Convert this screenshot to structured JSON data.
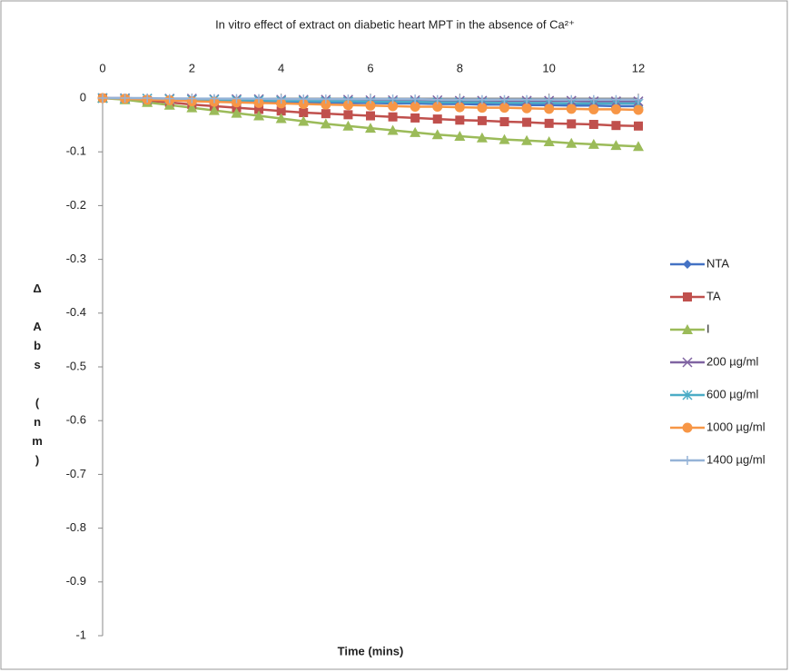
{
  "chart_data": {
    "type": "line",
    "title": "In vitro effect of extract on diabetic heart MPT in the absence of Ca²⁺",
    "x_label": "Time (mins)",
    "y_label": "Δ Abs (nm)",
    "x": [
      0,
      0.5,
      1,
      1.5,
      2,
      2.5,
      3,
      3.5,
      4,
      4.5,
      5,
      5.5,
      6,
      6.5,
      7,
      7.5,
      8,
      8.5,
      9,
      9.5,
      10,
      10.5,
      11,
      11.5,
      12
    ],
    "xlim": [
      0,
      12
    ],
    "xticks": [
      0,
      2,
      4,
      6,
      8,
      10,
      12
    ],
    "ylim": [
      -1,
      0
    ],
    "yticks": [
      0,
      -0.1,
      -0.2,
      -0.3,
      -0.4,
      -0.5,
      -0.6,
      -0.7,
      -0.8,
      -0.9,
      -1
    ],
    "grid": false,
    "legend": "right",
    "series": [
      {
        "name": "NTA",
        "color": "#4472c4",
        "marker": "diamond",
        "values": [
          0,
          -0.001,
          -0.002,
          -0.003,
          -0.004,
          -0.005,
          -0.006,
          -0.006,
          -0.007,
          -0.008,
          -0.008,
          -0.009,
          -0.009,
          -0.01,
          -0.01,
          -0.011,
          -0.011,
          -0.012,
          -0.012,
          -0.013,
          -0.013,
          -0.014,
          -0.014,
          -0.015,
          -0.015
        ]
      },
      {
        "name": "TA",
        "color": "#c0504d",
        "marker": "square",
        "values": [
          0,
          -0.002,
          -0.005,
          -0.008,
          -0.012,
          -0.015,
          -0.018,
          -0.021,
          -0.024,
          -0.027,
          -0.029,
          -0.031,
          -0.033,
          -0.035,
          -0.037,
          -0.039,
          -0.041,
          -0.042,
          -0.044,
          -0.045,
          -0.047,
          -0.048,
          -0.049,
          -0.051,
          -0.052
        ]
      },
      {
        "name": "I",
        "color": "#9bbb59",
        "marker": "triangle",
        "values": [
          0,
          -0.003,
          -0.008,
          -0.013,
          -0.018,
          -0.023,
          -0.028,
          -0.033,
          -0.038,
          -0.043,
          -0.048,
          -0.052,
          -0.056,
          -0.06,
          -0.064,
          -0.068,
          -0.071,
          -0.074,
          -0.077,
          -0.079,
          -0.081,
          -0.084,
          -0.086,
          -0.088,
          -0.09
        ]
      },
      {
        "name": "200 µg/ml",
        "color": "#8064a2",
        "marker": "x",
        "values": [
          0,
          0,
          -0.001,
          -0.001,
          -0.001,
          -0.002,
          -0.002,
          -0.002,
          -0.003,
          -0.003,
          -0.003,
          -0.003,
          -0.004,
          -0.004,
          -0.004,
          -0.004,
          -0.005,
          -0.005,
          -0.005,
          -0.005,
          -0.005,
          -0.005,
          -0.006,
          -0.006,
          -0.006
        ]
      },
      {
        "name": "600 µg/ml",
        "color": "#4bacc6",
        "marker": "star",
        "values": [
          0,
          -0.001,
          -0.001,
          -0.002,
          -0.003,
          -0.003,
          -0.004,
          -0.004,
          -0.005,
          -0.005,
          -0.006,
          -0.006,
          -0.007,
          -0.007,
          -0.007,
          -0.008,
          -0.008,
          -0.008,
          -0.009,
          -0.009,
          -0.009,
          -0.01,
          -0.01,
          -0.01,
          -0.01
        ]
      },
      {
        "name": "1000 µg/ml",
        "color": "#f79646",
        "marker": "circle",
        "values": [
          0,
          -0.001,
          -0.003,
          -0.004,
          -0.006,
          -0.007,
          -0.008,
          -0.009,
          -0.01,
          -0.011,
          -0.012,
          -0.013,
          -0.014,
          -0.015,
          -0.016,
          -0.016,
          -0.017,
          -0.018,
          -0.018,
          -0.019,
          -0.02,
          -0.02,
          -0.021,
          -0.021,
          -0.022
        ]
      },
      {
        "name": "1400 µg/ml",
        "color": "#95b3d7",
        "marker": "plus",
        "values": [
          0,
          0,
          0,
          -0.001,
          -0.001,
          -0.001,
          -0.001,
          -0.001,
          -0.002,
          -0.002,
          -0.002,
          -0.002,
          -0.002,
          -0.002,
          -0.002,
          -0.003,
          -0.003,
          -0.003,
          -0.003,
          -0.003,
          -0.003,
          -0.003,
          -0.003,
          -0.003,
          -0.003
        ]
      }
    ]
  }
}
